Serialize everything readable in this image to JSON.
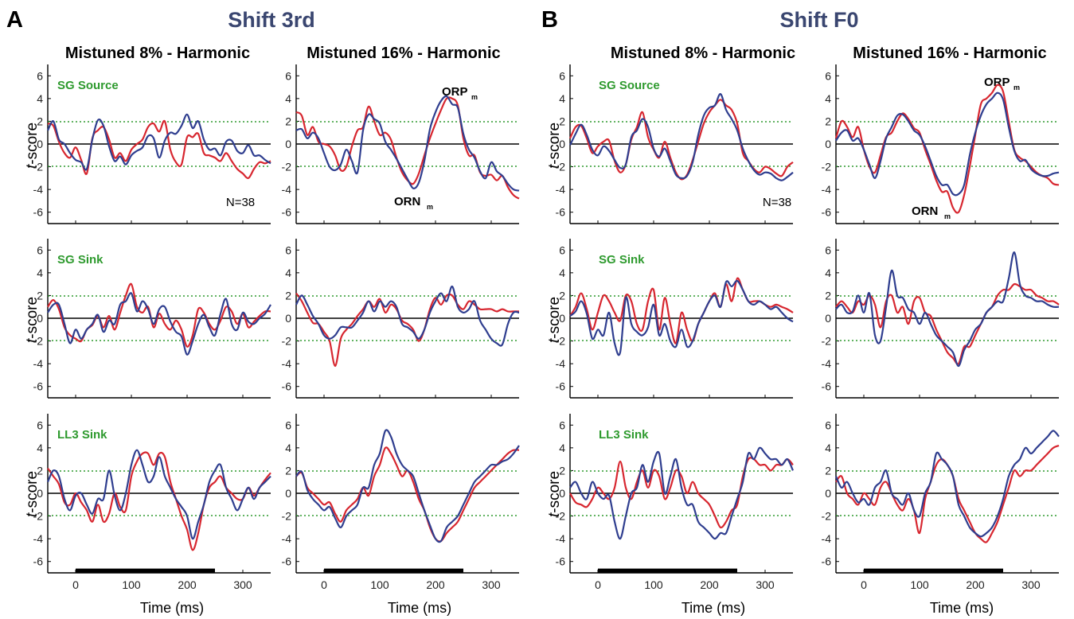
{
  "figure": {
    "panel_A": "A",
    "panel_B": "B",
    "group_A_title": "Shift 3rd",
    "group_B_title": "Shift F0",
    "col_titles": [
      "Mistuned 8% - Harmonic",
      "Mistuned 16% - Harmonic",
      "Mistuned 8% - Harmonic",
      "Mistuned 16% - Harmonic"
    ],
    "row_labels": [
      "SG Source",
      "SG Sink",
      "LL3 Sink"
    ],
    "ylabel_italic": "t",
    "ylabel_rest": "-score",
    "xlabel": "Time (ms)",
    "n_label": "N=38",
    "orp": "ORP",
    "orn": "ORN",
    "sub_m": "m"
  },
  "colors": {
    "series_red": "#d7262f",
    "series_blue": "#2f3e8f",
    "threshold": "#2e9a2e",
    "zero": "#000000",
    "stimulus_bar": "#000000",
    "group_title": "#3a4670",
    "row_label": "#2e9a2e"
  },
  "chart_data": {
    "type": "line",
    "layout": "3 rows x 4 columns of small-multiple line plots",
    "xlim": [
      -50,
      350
    ],
    "ylim": [
      -7,
      7
    ],
    "x_ticks": [
      0,
      100,
      200,
      300
    ],
    "y_ticks": [
      6,
      4,
      2,
      0,
      -2,
      -4,
      -6
    ],
    "threshold_lines": [
      1.96,
      -1.96
    ],
    "stimulus_bar": [
      0,
      250
    ],
    "x_step_ms": 10,
    "x_start_ms": -50,
    "series_colors": [
      "red",
      "blue"
    ],
    "panels": [
      {
        "row": "SG Source",
        "col": "Shift 3rd / Mistuned 8% - Harmonic",
        "red": [
          1.8,
          1.6,
          0.2,
          -0.8,
          -1.2,
          -0.3,
          -1.4,
          -2.6,
          0.5,
          1.2,
          1.5,
          0.4,
          -1.2,
          -0.8,
          -1.5,
          -0.5,
          0.0,
          0.4,
          1.5,
          1.8,
          1.1,
          2.0,
          -0.5,
          -1.6,
          -1.8,
          0.6,
          0.6,
          0.9,
          -0.8,
          -1.0,
          -1.2,
          -1.5,
          -0.8,
          -1.5,
          -2.2,
          -2.6,
          -3.0,
          -2.2,
          -1.6,
          -1.7,
          -1.5
        ],
        "blue": [
          1.2,
          2.0,
          0.4,
          0.0,
          -0.8,
          -1.4,
          -1.6,
          -2.2,
          0.4,
          2.1,
          1.6,
          -0.2,
          -1.5,
          -1.1,
          -1.8,
          -1.0,
          -0.6,
          -0.3,
          0.7,
          0.5,
          -1.2,
          0.3,
          1.0,
          0.9,
          1.6,
          2.6,
          1.4,
          2.0,
          0.4,
          -0.5,
          -0.4,
          -1.0,
          0.2,
          0.3,
          -0.6,
          -0.8,
          -0.1,
          -1.0,
          -1.0,
          -1.4,
          -1.7
        ]
      },
      {
        "row": "SG Source",
        "col": "Shift 3rd / Mistuned 16% - Harmonic",
        "red": [
          2.8,
          2.5,
          0.8,
          1.5,
          0.2,
          0.0,
          -0.2,
          -1.0,
          -2.3,
          -2.0,
          -0.2,
          1.2,
          1.5,
          3.3,
          2.0,
          0.8,
          1.0,
          0.4,
          -1.2,
          -2.5,
          -3.2,
          -3.5,
          -2.6,
          -1.0,
          0.5,
          1.8,
          3.0,
          4.0,
          4.0,
          3.4,
          0.5,
          -1.0,
          -1.0,
          -2.5,
          -2.8,
          -2.7,
          -3.2,
          -2.8,
          -3.8,
          -4.5,
          -4.8
        ],
        "blue": [
          1.2,
          1.3,
          0.5,
          1.0,
          0.5,
          -0.8,
          -2.0,
          -2.3,
          -1.8,
          -0.5,
          -1.5,
          -2.5,
          1.2,
          2.6,
          2.2,
          1.8,
          0.2,
          -0.5,
          -1.3,
          -2.2,
          -3.1,
          -3.9,
          -3.4,
          -1.5,
          1.3,
          2.8,
          3.8,
          4.2,
          3.5,
          3.2,
          0.9,
          -0.5,
          -1.2,
          -2.4,
          -3.0,
          -1.6,
          -2.4,
          -2.8,
          -3.5,
          -4.0,
          -4.1
        ]
      },
      {
        "row": "SG Source",
        "col": "Shift F0 / Mistuned 8% - Harmonic",
        "red": [
          0.5,
          1.5,
          1.6,
          0.5,
          -0.8,
          -0.2,
          0.2,
          0.3,
          -1.5,
          -2.5,
          -1.8,
          0.4,
          1.5,
          2.8,
          0.6,
          -0.5,
          -1.2,
          0.2,
          -1.2,
          -2.5,
          -3.1,
          -2.7,
          -1.4,
          0.2,
          1.8,
          2.8,
          3.4,
          3.9,
          3.4,
          3.0,
          1.8,
          -0.8,
          -1.5,
          -2.2,
          -2.5,
          -2.0,
          -2.2,
          -2.6,
          -2.8,
          -2.0,
          -1.6
        ],
        "blue": [
          -0.1,
          0.9,
          1.7,
          0.8,
          -0.5,
          -1.0,
          -0.2,
          -0.6,
          -1.4,
          -2.1,
          -1.8,
          0.6,
          1.2,
          2.2,
          1.5,
          -0.4,
          -1.1,
          -0.4,
          -1.5,
          -2.7,
          -3.0,
          -2.8,
          -1.6,
          0.8,
          2.5,
          3.2,
          3.4,
          4.4,
          3.0,
          2.2,
          1.2,
          -0.4,
          -1.5,
          -2.3,
          -2.7,
          -2.5,
          -2.6,
          -3.0,
          -3.2,
          -2.9,
          -2.5
        ]
      },
      {
        "row": "SG Source",
        "col": "Shift F0 / Mistuned 16% - Harmonic",
        "red": [
          0.5,
          2.0,
          1.5,
          0.6,
          1.5,
          -0.5,
          -2.0,
          -2.5,
          -1.0,
          0.6,
          1.0,
          2.0,
          2.7,
          2.2,
          1.4,
          1.0,
          -0.5,
          -1.8,
          -3.2,
          -4.2,
          -4.2,
          -5.6,
          -6.0,
          -4.5,
          -2.0,
          0.8,
          3.5,
          4.0,
          4.5,
          5.2,
          4.6,
          2.0,
          -0.5,
          -1.2,
          -1.5,
          -2.0,
          -2.5,
          -2.8,
          -3.0,
          -3.5,
          -3.6
        ],
        "blue": [
          0.3,
          1.0,
          1.2,
          0.3,
          0.5,
          -0.5,
          -1.8,
          -3.0,
          -1.5,
          0.5,
          1.5,
          2.5,
          2.6,
          2.0,
          1.2,
          0.8,
          -0.2,
          -1.5,
          -2.8,
          -3.6,
          -3.6,
          -4.4,
          -4.4,
          -3.6,
          -1.0,
          1.0,
          2.5,
          3.5,
          4.0,
          4.5,
          3.9,
          1.5,
          -0.6,
          -1.5,
          -1.4,
          -2.2,
          -2.6,
          -2.8,
          -2.8,
          -2.6,
          -2.5
        ]
      },
      {
        "row": "SG Sink",
        "col": "Shift 3rd / Mistuned 8% - Harmonic",
        "red": [
          1.0,
          1.6,
          0.8,
          -0.8,
          -1.5,
          -1.8,
          -2.0,
          -1.0,
          -0.6,
          0.2,
          -0.8,
          0.2,
          -1.0,
          0.5,
          2.0,
          3.0,
          1.0,
          0.5,
          1.0,
          -0.8,
          0.4,
          -0.5,
          -1.0,
          -0.2,
          -1.0,
          -2.5,
          -1.5,
          0.8,
          0.5,
          -0.5,
          -1.0,
          -0.2,
          1.0,
          0.6,
          -0.5,
          0.4,
          -0.8,
          -0.3,
          0.2,
          0.6,
          0.6
        ],
        "blue": [
          0.5,
          1.2,
          1.2,
          -0.5,
          -2.2,
          -1.0,
          -1.8,
          -1.0,
          -0.5,
          0.3,
          -1.2,
          -0.2,
          -0.5,
          1.2,
          1.5,
          2.2,
          0.6,
          1.5,
          0.8,
          -0.5,
          0.8,
          1.0,
          -0.3,
          -1.2,
          -1.6,
          -3.2,
          -2.0,
          -0.5,
          0.3,
          -0.8,
          -1.5,
          0.4,
          1.7,
          -0.5,
          -1.0,
          0.5,
          -0.3,
          -0.5,
          0.0,
          0.4,
          1.2
        ]
      },
      {
        "row": "SG Sink",
        "col": "Shift 3rd / Mistuned 16% - Harmonic",
        "red": [
          2.2,
          1.5,
          0.5,
          -0.4,
          -0.5,
          -1.2,
          -2.0,
          -4.2,
          -1.8,
          -1.0,
          -0.5,
          0.2,
          0.8,
          1.5,
          1.0,
          1.7,
          0.5,
          1.2,
          0.8,
          -0.2,
          -0.5,
          -1.0,
          -2.0,
          -1.0,
          0.8,
          1.8,
          1.2,
          2.0,
          2.0,
          1.2,
          0.8,
          1.5,
          1.2,
          0.8,
          0.8,
          0.8,
          0.6,
          0.8,
          0.6,
          0.6,
          0.6
        ],
        "blue": [
          1.2,
          2.0,
          1.2,
          0.2,
          -0.5,
          -1.5,
          -1.8,
          -1.5,
          -0.8,
          -0.8,
          -0.8,
          -0.2,
          0.5,
          1.5,
          0.6,
          1.5,
          1.0,
          1.5,
          1.0,
          -0.5,
          -0.8,
          -1.2,
          -1.8,
          -1.0,
          0.5,
          1.5,
          2.2,
          1.5,
          2.8,
          1.0,
          0.5,
          0.8,
          1.5,
          -0.2,
          -1.0,
          -1.8,
          -2.2,
          -2.3,
          -0.5,
          0.5,
          0.5
        ]
      },
      {
        "row": "SG Sink",
        "col": "Shift F0 / Mistuned 8% - Harmonic",
        "red": [
          0.2,
          1.0,
          2.2,
          0.8,
          -1.0,
          0.5,
          2.0,
          1.5,
          0.5,
          -0.2,
          2.0,
          1.5,
          -0.5,
          -1.0,
          1.5,
          2.5,
          -1.0,
          1.8,
          -0.5,
          -2.2,
          0.5,
          -1.0,
          -2.0,
          -0.5,
          0.5,
          1.5,
          2.2,
          1.0,
          3.0,
          1.5,
          3.5,
          2.5,
          1.5,
          1.5,
          1.5,
          1.2,
          1.0,
          1.2,
          1.0,
          0.8,
          0.5
        ],
        "blue": [
          0.2,
          0.6,
          1.5,
          0.4,
          -1.8,
          -1.0,
          -1.5,
          0.5,
          -2.2,
          -3.0,
          1.8,
          -0.5,
          -1.2,
          -1.5,
          -0.8,
          1.2,
          -1.5,
          -0.5,
          -2.0,
          -2.5,
          -1.0,
          -2.5,
          -2.0,
          -0.5,
          0.5,
          1.5,
          2.0,
          1.0,
          3.2,
          2.8,
          3.3,
          2.5,
          1.5,
          1.2,
          1.5,
          1.2,
          0.8,
          1.0,
          0.5,
          0.0,
          -0.3
        ]
      },
      {
        "row": "SG Sink",
        "col": "Shift F0 / Mistuned 16% - Harmonic",
        "red": [
          1.0,
          1.5,
          1.0,
          0.5,
          1.5,
          1.2,
          2.0,
          1.2,
          -0.8,
          1.5,
          2.0,
          0.5,
          1.0,
          -0.5,
          1.5,
          1.8,
          0.5,
          0.2,
          -1.0,
          -2.0,
          -3.0,
          -3.5,
          -4.0,
          -2.5,
          -2.5,
          -1.5,
          -0.5,
          0.5,
          1.0,
          2.0,
          2.5,
          2.5,
          3.0,
          2.8,
          2.5,
          2.5,
          2.0,
          1.8,
          1.5,
          1.5,
          1.2
        ],
        "blue": [
          0.8,
          1.2,
          0.5,
          0.6,
          2.0,
          0.5,
          2.2,
          -1.5,
          -2.0,
          1.0,
          4.2,
          2.0,
          1.8,
          0.8,
          0.5,
          -0.5,
          0.5,
          -0.5,
          -1.5,
          -2.0,
          -2.5,
          -3.0,
          -4.2,
          -2.8,
          -2.0,
          -1.0,
          -0.5,
          0.5,
          1.0,
          1.5,
          1.5,
          3.5,
          5.8,
          3.0,
          2.0,
          1.8,
          1.5,
          1.5,
          1.2,
          1.0,
          1.0
        ]
      },
      {
        "row": "LL3 Sink",
        "col": "Shift 3rd / Mistuned 8% - Harmonic",
        "red": [
          2.2,
          1.5,
          0.8,
          -0.8,
          -1.0,
          0.0,
          -0.8,
          -1.5,
          -2.5,
          -1.0,
          -2.5,
          -1.8,
          0.0,
          -1.2,
          -1.5,
          1.5,
          2.8,
          3.5,
          3.5,
          2.5,
          3.5,
          3.2,
          1.0,
          -0.5,
          -2.0,
          -3.2,
          -5.0,
          -3.5,
          -1.0,
          0.5,
          1.0,
          1.5,
          0.5,
          0.0,
          -0.5,
          -0.5,
          0.5,
          -0.2,
          0.5,
          1.2,
          1.8
        ],
        "blue": [
          1.0,
          2.0,
          1.5,
          -0.5,
          -1.5,
          -0.2,
          0.0,
          -1.0,
          -1.8,
          -0.5,
          -0.5,
          2.0,
          -0.2,
          -1.5,
          0.0,
          2.5,
          3.8,
          2.5,
          1.0,
          1.5,
          3.2,
          1.5,
          0.5,
          -0.5,
          -1.2,
          -2.0,
          -4.0,
          -2.5,
          -1.0,
          1.0,
          2.0,
          2.5,
          0.5,
          -0.5,
          -1.5,
          -0.5,
          0.5,
          -0.5,
          0.5,
          1.0,
          1.5
        ]
      },
      {
        "row": "LL3 Sink",
        "col": "Shift 3rd / Mistuned 16% - Harmonic",
        "red": [
          1.5,
          1.8,
          0.5,
          0.0,
          -0.5,
          -1.0,
          -0.8,
          -1.8,
          -2.5,
          -1.5,
          -1.0,
          -0.5,
          0.5,
          -0.2,
          1.5,
          2.5,
          4.0,
          3.5,
          2.5,
          1.5,
          2.0,
          1.0,
          -0.5,
          -1.5,
          -3.0,
          -4.0,
          -4.2,
          -3.5,
          -3.0,
          -2.5,
          -1.5,
          -0.5,
          0.5,
          1.0,
          1.5,
          2.0,
          2.5,
          3.0,
          3.5,
          3.8,
          3.8
        ],
        "blue": [
          1.5,
          1.9,
          0.3,
          -0.5,
          -1.0,
          -1.5,
          -1.2,
          -2.2,
          -3.0,
          -2.0,
          -1.5,
          -1.0,
          0.5,
          0.5,
          2.5,
          3.5,
          5.5,
          5.0,
          3.5,
          2.5,
          2.0,
          1.5,
          0.0,
          -1.5,
          -2.8,
          -4.0,
          -4.2,
          -3.0,
          -2.5,
          -2.0,
          -1.0,
          0.0,
          1.0,
          1.5,
          2.0,
          2.5,
          2.5,
          2.8,
          3.0,
          3.5,
          4.2
        ]
      },
      {
        "row": "LL3 Sink",
        "col": "Shift F0 / Mistuned 8% - Harmonic",
        "red": [
          0.0,
          -0.8,
          -1.0,
          -1.2,
          -0.5,
          0.5,
          0.0,
          -0.5,
          0.5,
          2.8,
          0.5,
          -0.5,
          1.0,
          2.0,
          0.5,
          2.0,
          1.5,
          -0.5,
          0.5,
          2.0,
          1.5,
          0.0,
          1.0,
          0.0,
          -0.5,
          -1.0,
          -2.0,
          -3.0,
          -2.5,
          -1.5,
          -1.0,
          1.5,
          3.0,
          3.0,
          2.5,
          2.5,
          2.0,
          2.5,
          2.5,
          3.0,
          2.5
        ],
        "blue": [
          0.5,
          1.0,
          0.0,
          -0.5,
          1.0,
          0.0,
          -0.5,
          -0.2,
          -2.5,
          -4.0,
          -2.0,
          0.0,
          0.5,
          2.5,
          1.0,
          2.8,
          3.5,
          0.0,
          1.5,
          3.0,
          0.5,
          -1.0,
          -1.0,
          -2.5,
          -3.0,
          -3.5,
          -4.0,
          -3.5,
          -3.5,
          -2.0,
          -0.5,
          1.0,
          3.5,
          3.0,
          4.0,
          3.5,
          3.0,
          3.0,
          2.5,
          3.0,
          2.0
        ]
      },
      {
        "row": "LL3 Sink",
        "col": "Shift F0 / Mistuned 16% - Harmonic",
        "red": [
          1.0,
          1.5,
          0.0,
          -0.5,
          -1.0,
          0.0,
          -0.5,
          -1.0,
          0.5,
          1.0,
          0.0,
          -1.0,
          -1.5,
          -0.5,
          -1.5,
          -3.5,
          -0.5,
          1.0,
          2.5,
          3.0,
          2.5,
          1.5,
          -0.5,
          -1.5,
          -2.5,
          -3.5,
          -4.0,
          -4.3,
          -3.5,
          -2.5,
          -1.0,
          0.5,
          2.0,
          1.5,
          2.0,
          2.0,
          2.5,
          3.0,
          3.5,
          4.0,
          4.2
        ],
        "blue": [
          1.5,
          0.5,
          1.0,
          0.0,
          -0.8,
          -0.5,
          -1.0,
          0.5,
          1.0,
          2.0,
          0.0,
          -0.5,
          -1.0,
          0.0,
          -1.5,
          -2.0,
          0.0,
          1.0,
          3.5,
          3.0,
          2.5,
          1.5,
          -1.0,
          -2.0,
          -3.0,
          -3.5,
          -3.8,
          -3.5,
          -3.0,
          -2.0,
          -0.5,
          1.5,
          2.5,
          3.0,
          4.0,
          3.5,
          4.0,
          4.5,
          5.0,
          5.5,
          5.0
        ]
      }
    ]
  }
}
